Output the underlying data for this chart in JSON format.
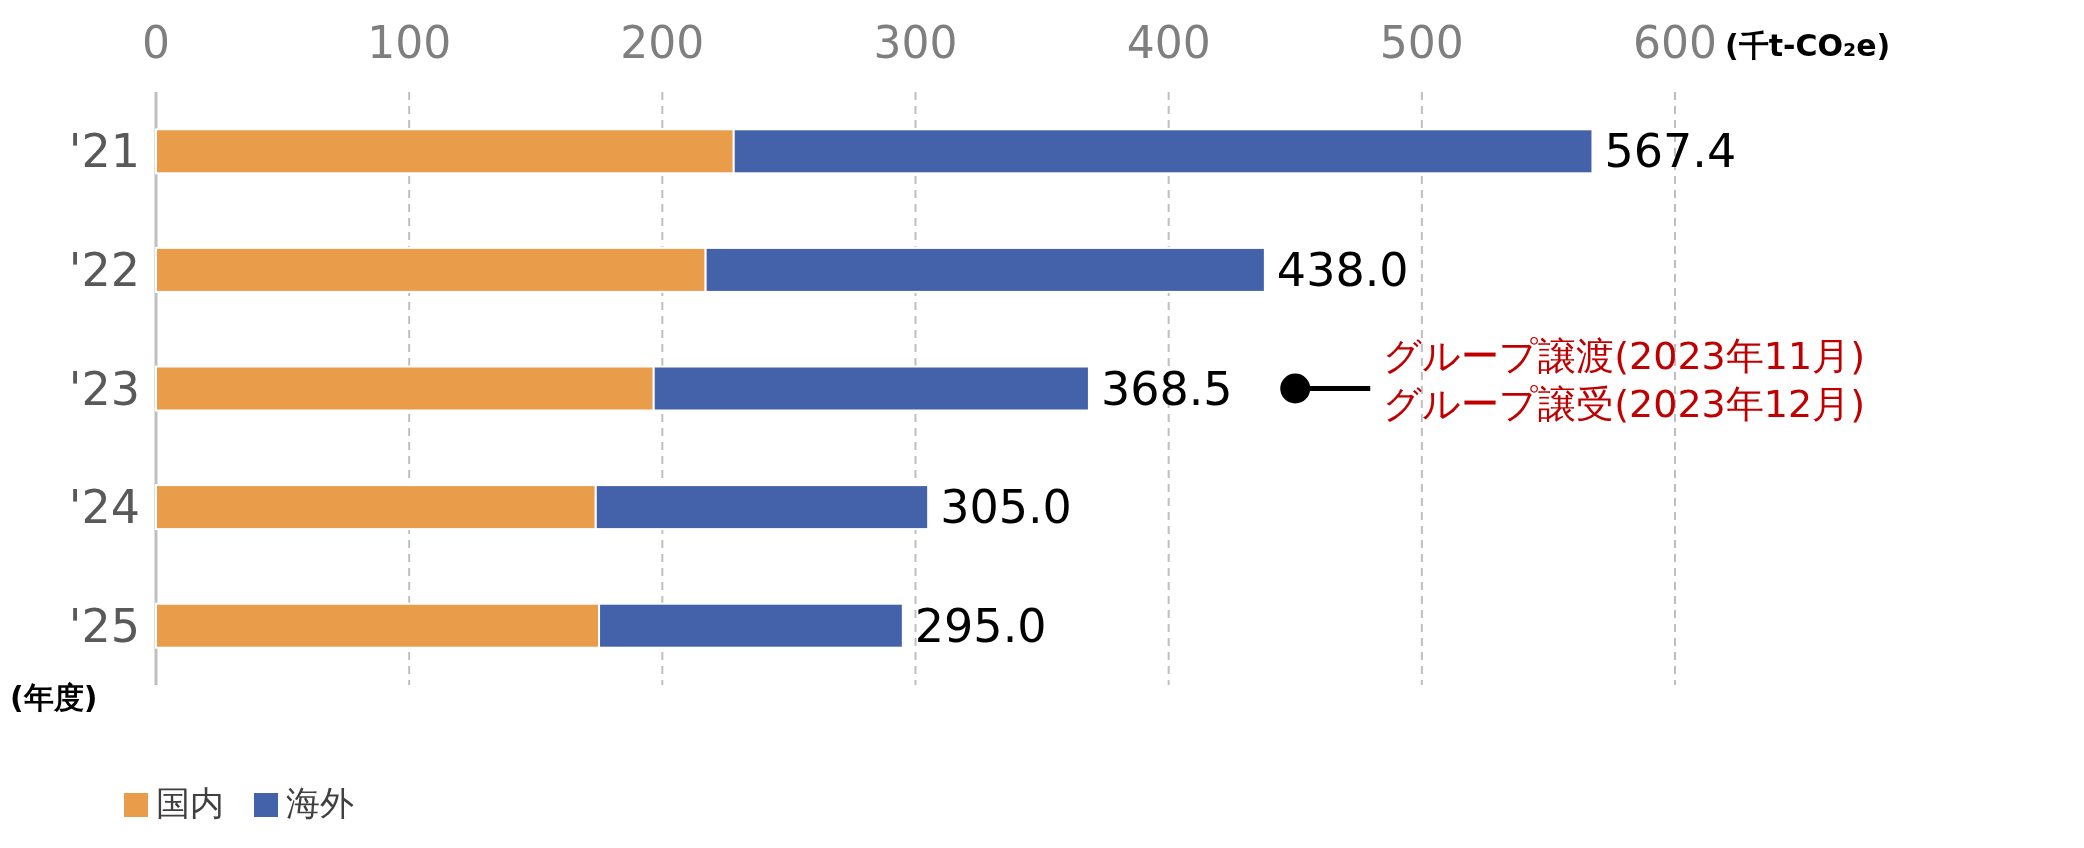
{
  "chart_data": {
    "type": "bar",
    "orientation": "horizontal",
    "stacked": true,
    "xlabel": "(千t-CO₂e)",
    "ylabel": "(年度)",
    "categories": [
      "'21",
      "'22",
      "'23",
      "'24",
      "'25"
    ],
    "series": [
      {
        "name": "国内",
        "color": "#e99d4a",
        "values": [
          228.2,
          217.1,
          196.6,
          173.7,
          175.0
        ]
      },
      {
        "name": "海外",
        "color": "#4462aa",
        "values": [
          339.2,
          220.9,
          171.9,
          131.3,
          120.0
        ]
      }
    ],
    "totals": [
      "567.4",
      "438.0",
      "368.5",
      "305.0",
      "295.0"
    ],
    "xlim": [
      0,
      600
    ],
    "xticks": [
      0,
      100,
      200,
      300,
      400,
      500,
      600
    ],
    "grid": "x",
    "legend": "bottom left",
    "annotations": [
      {
        "text": "グループ譲渡(2023年11月)\nグループ譲受(2023年12月)",
        "x": 450,
        "y": "'23"
      }
    ]
  }
}
